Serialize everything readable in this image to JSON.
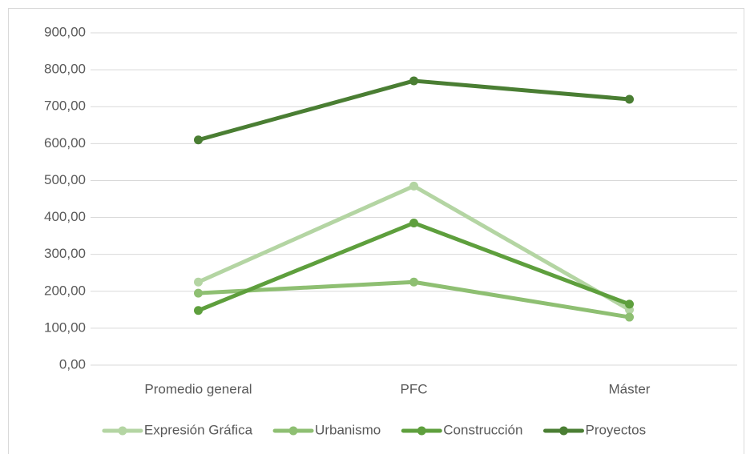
{
  "chart_data": {
    "type": "line",
    "categories": [
      "Promedio general",
      "PFC",
      "Máster"
    ],
    "series": [
      {
        "name": "Expresión Gráfica",
        "color": "#b4d5a3",
        "values": [
          225,
          485,
          150
        ]
      },
      {
        "name": "Urbanismo",
        "color": "#8ebf72",
        "values": [
          195,
          225,
          130
        ]
      },
      {
        "name": "Construcción",
        "color": "#5e9f3d",
        "values": [
          148,
          385,
          165
        ]
      },
      {
        "name": "Proyectos",
        "color": "#4a7e33",
        "values": [
          610,
          770,
          720
        ]
      }
    ],
    "ylim": [
      0,
      900
    ],
    "yticks": [
      {
        "value": 0,
        "label": "0,00"
      },
      {
        "value": 100,
        "label": "100,00"
      },
      {
        "value": 200,
        "label": "200,00"
      },
      {
        "value": 300,
        "label": "300,00"
      },
      {
        "value": 400,
        "label": "400,00"
      },
      {
        "value": 500,
        "label": "500,00"
      },
      {
        "value": 600,
        "label": "600,00"
      },
      {
        "value": 700,
        "label": "700,00"
      },
      {
        "value": 800,
        "label": "800,00"
      },
      {
        "value": 900,
        "label": "900,00"
      }
    ],
    "grid": true,
    "legend": "bottom"
  }
}
